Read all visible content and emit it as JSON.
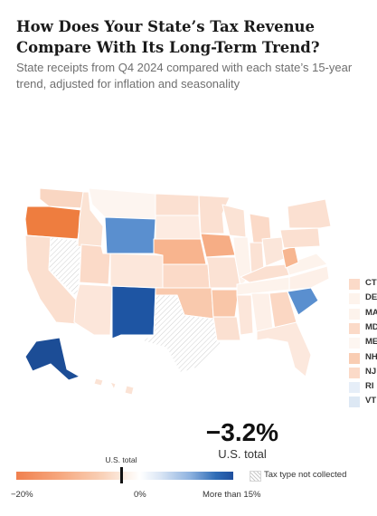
{
  "title": "How Does Your State’s Tax Revenue Compare With Its Long-Term Trend?",
  "subtitle": "State receipts from Q4 2024 compared with each state’s 15-year trend, adjusted for inflation and seasonality",
  "headline": {
    "value": "−3.2%",
    "label": "U.S. total"
  },
  "color_scale": {
    "marker_label": "U.S. total",
    "min_label": "−20%",
    "mid_label": "0%",
    "max_label": "More than 15%",
    "domain": [
      -20,
      15
    ],
    "us_total": -3.2,
    "colors": {
      "neg_strong": "#f0804f",
      "neutral": "#ffffff",
      "pos_strong": "#1f4f9e"
    },
    "no_data_label": "Tax type not collected"
  },
  "small_states": [
    {
      "abbr": "CT",
      "color": "#fbdac8"
    },
    {
      "abbr": "DE",
      "color": "#fdf3ec"
    },
    {
      "abbr": "MA",
      "color": "#fdf3ec"
    },
    {
      "abbr": "MD",
      "color": "#fbdac8"
    },
    {
      "abbr": "ME",
      "color": "#fdf6f1"
    },
    {
      "abbr": "NH",
      "color": "#f9cdb3"
    },
    {
      "abbr": "NJ",
      "color": "#fbdac8"
    },
    {
      "abbr": "RI",
      "color": "#e6eef8"
    },
    {
      "abbr": "VT",
      "color": "#dde8f4"
    }
  ],
  "states": [
    {
      "abbr": "WA",
      "color": "#f9d6c2"
    },
    {
      "abbr": "OR",
      "color": "#ee7d3f"
    },
    {
      "abbr": "CA",
      "color": "#fbdfcf"
    },
    {
      "abbr": "NV",
      "color": "#hatch"
    },
    {
      "abbr": "ID",
      "color": "#fbe3d4"
    },
    {
      "abbr": "MT",
      "color": "#fdf5f0"
    },
    {
      "abbr": "WY",
      "color": "#5a8fcf"
    },
    {
      "abbr": "UT",
      "color": "#fbdac8"
    },
    {
      "abbr": "AZ",
      "color": "#fce6da"
    },
    {
      "abbr": "NM",
      "color": "#1e55a3"
    },
    {
      "abbr": "CO",
      "color": "#fce7db"
    },
    {
      "abbr": "ND",
      "color": "#fbe0d1"
    },
    {
      "abbr": "SD",
      "color": "#fdebe1"
    },
    {
      "abbr": "NE",
      "color": "#f8b48e"
    },
    {
      "abbr": "KS",
      "color": "#fbdac8"
    },
    {
      "abbr": "OK",
      "color": "#f9c9ad"
    },
    {
      "abbr": "TX",
      "color": "#hatch"
    },
    {
      "abbr": "MN",
      "color": "#fbe0d1"
    },
    {
      "abbr": "IA",
      "color": "#f6ad85"
    },
    {
      "abbr": "MO",
      "color": "#fbe2d4"
    },
    {
      "abbr": "AR",
      "color": "#f9c6a8"
    },
    {
      "abbr": "LA",
      "color": "#fbe0d1"
    },
    {
      "abbr": "WI",
      "color": "#fbe3d5"
    },
    {
      "abbr": "IL",
      "color": "#fdf3ec"
    },
    {
      "abbr": "MI",
      "color": "#fbdac8"
    },
    {
      "abbr": "IN",
      "color": "#fbe2d4"
    },
    {
      "abbr": "OH",
      "color": "#fbe6da"
    },
    {
      "abbr": "KY",
      "color": "#fbe0d1"
    },
    {
      "abbr": "TN",
      "color": "#fdf3ec"
    },
    {
      "abbr": "MS",
      "color": "#fce6da"
    },
    {
      "abbr": "AL",
      "color": "#fdf0e8"
    },
    {
      "abbr": "GA",
      "color": "#fbd7c3"
    },
    {
      "abbr": "FL",
      "color": "#fce8dd"
    },
    {
      "abbr": "SC",
      "color": "#5a8fcf"
    },
    {
      "abbr": "NC",
      "color": "#fdf0e8"
    },
    {
      "abbr": "VA",
      "color": "#fdf3ec"
    },
    {
      "abbr": "WV",
      "color": "#f7b690"
    },
    {
      "abbr": "PA",
      "color": "#fbe0d1"
    },
    {
      "abbr": "NY",
      "color": "#fbe0d1"
    },
    {
      "abbr": "AK",
      "color": "#1c4d96"
    },
    {
      "abbr": "HI",
      "color": "#fbe3d5"
    }
  ]
}
